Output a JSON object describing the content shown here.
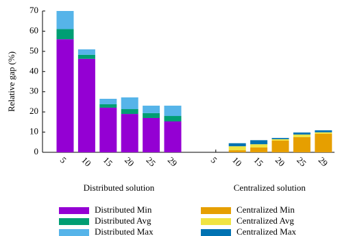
{
  "chart_data": {
    "type": "stacked_bar",
    "y_label": "Relative gap (%)",
    "ylim": [
      0,
      70
    ],
    "yticks": [
      0,
      10,
      20,
      30,
      40,
      50,
      60,
      70
    ],
    "groups": [
      {
        "label": "Distributed solution",
        "categories": [
          "5",
          "10",
          "15",
          "20",
          "25",
          "29"
        ]
      },
      {
        "label": "Centralized solution",
        "categories": [
          "5",
          "10",
          "15",
          "20",
          "25",
          "29"
        ]
      }
    ],
    "series": [
      {
        "name": "Distributed Min",
        "color": "#9400d3",
        "values": [
          56,
          46.3,
          22.1,
          19,
          17,
          15.3,
          null,
          null,
          null,
          null,
          null,
          null
        ]
      },
      {
        "name": "Distributed Avg",
        "color": "#009e73",
        "values": [
          5,
          2,
          1.7,
          2.4,
          2.4,
          2.7,
          null,
          null,
          null,
          null,
          null,
          null
        ]
      },
      {
        "name": "Distributed Max",
        "color": "#56b4e9",
        "values": [
          9,
          2.7,
          2.7,
          5.8,
          3.7,
          5.1,
          null,
          null,
          null,
          null,
          null,
          null
        ]
      },
      {
        "name": "Centralized Min",
        "color": "#e69f00",
        "values": [
          null,
          null,
          null,
          null,
          null,
          null,
          0,
          1,
          2.4,
          5.8,
          7.5,
          9.2
        ]
      },
      {
        "name": "Centralized Avg",
        "color": "#f0e442",
        "values": [
          null,
          null,
          null,
          null,
          null,
          null,
          0,
          2,
          1.6,
          0.7,
          1.3,
          0.7
        ]
      },
      {
        "name": "Centralized Max",
        "color": "#0072b2",
        "values": [
          null,
          null,
          null,
          null,
          null,
          null,
          0,
          1.5,
          2,
          0.6,
          1,
          1
        ]
      }
    ]
  }
}
